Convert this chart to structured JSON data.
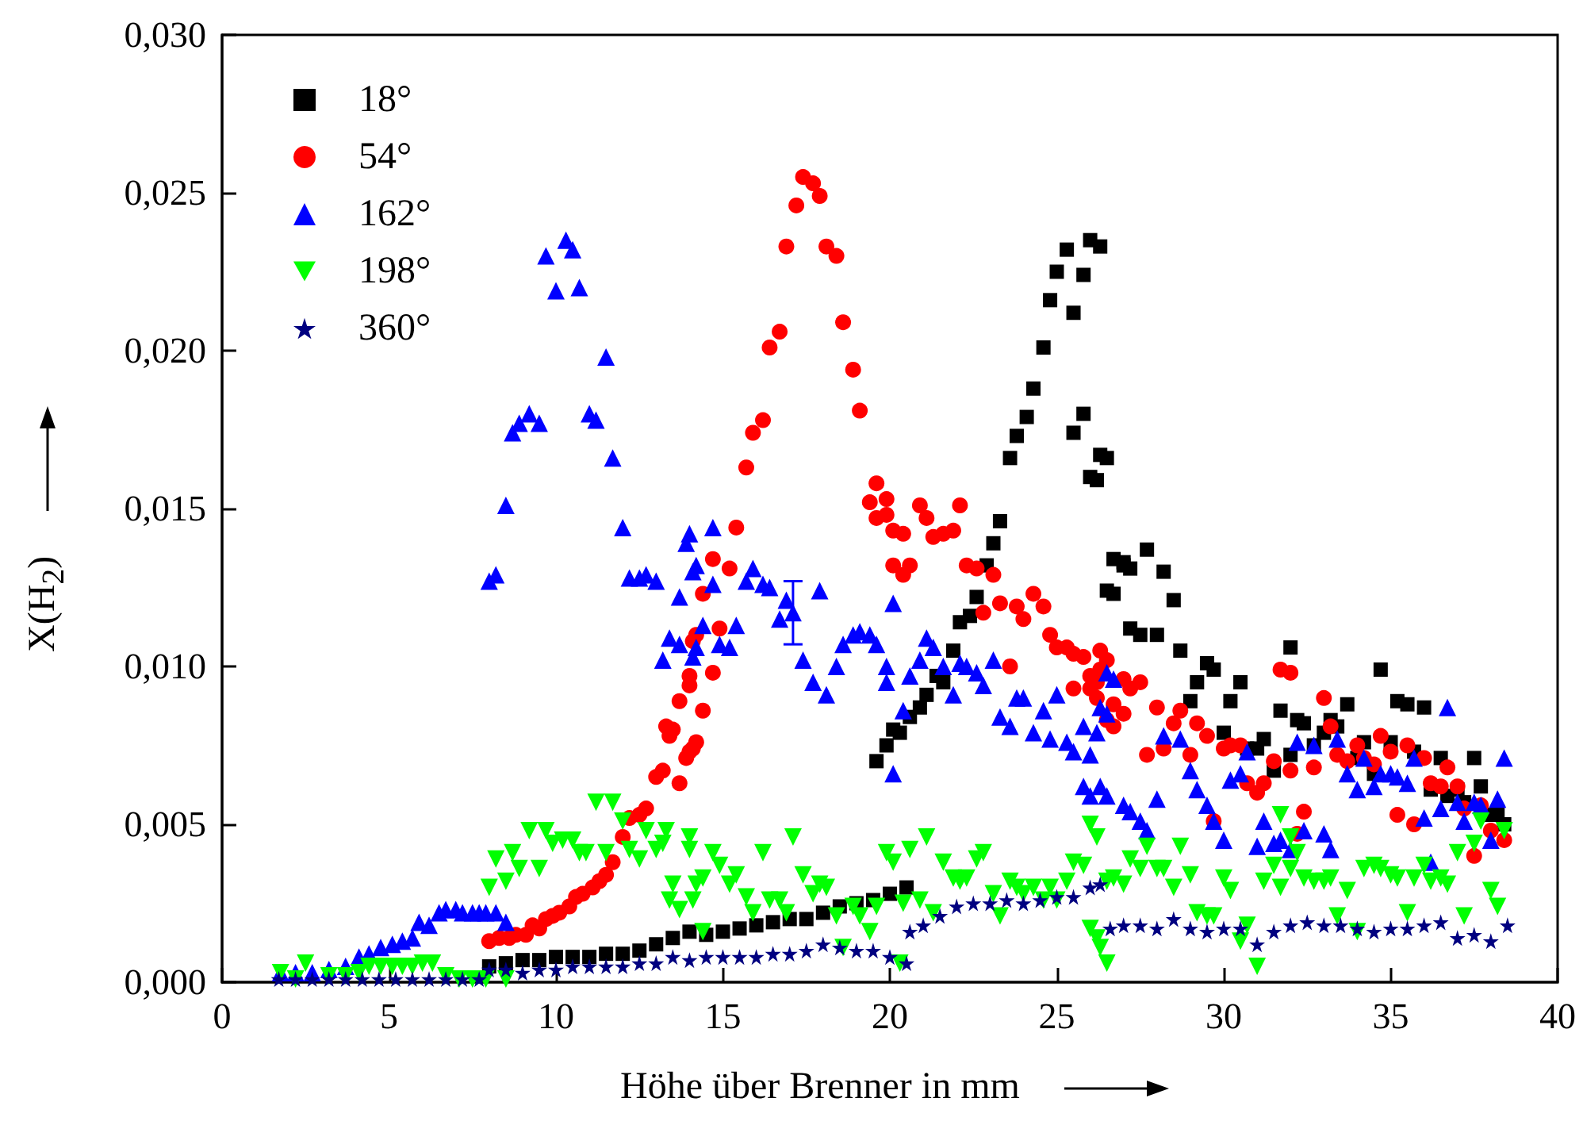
{
  "chart_data": {
    "type": "scatter",
    "xlabel": "Höhe über Brenner in mm",
    "ylabel": "X(H$_{2}$)",
    "xlim": [
      0,
      40
    ],
    "xticks": [
      0,
      5,
      10,
      15,
      20,
      25,
      30,
      35,
      40
    ],
    "ylim": [
      0,
      0.03
    ],
    "yticks": [
      {
        "value": 0,
        "label": "0,000"
      },
      {
        "value": 0.005,
        "label": "0,005"
      },
      {
        "value": 0.01,
        "label": "0,010"
      },
      {
        "value": 0.015,
        "label": "0,015"
      },
      {
        "value": 0.02,
        "label": "0,020"
      },
      {
        "value": 0.025,
        "label": "0,025"
      },
      {
        "value": 0.03,
        "label": "0,030"
      }
    ],
    "legend": "top left",
    "series": [
      {
        "name": "18°",
        "color": "#000000",
        "marker": "square",
        "x": [
          8,
          8.5,
          9,
          9.5,
          10,
          10.5,
          11,
          11.5,
          12,
          12.5,
          13,
          13.5,
          14,
          14.5,
          15,
          15.5,
          16,
          16.5,
          17,
          17.5,
          18,
          18.5,
          19,
          19.5,
          20,
          20.5,
          19.6,
          19.9,
          20.1,
          20.3,
          20.6,
          20.9,
          21.1,
          21.4,
          21.6,
          21.9,
          22.1,
          22.4,
          22.6,
          22.9,
          23.1,
          23.3,
          23.6,
          23.8,
          24.1,
          24.3,
          24.6,
          24.8,
          25.0,
          25.3,
          25.5,
          25.8,
          25.8,
          25.5,
          26.0,
          26.3,
          26.3,
          26.0,
          26.5,
          26.7,
          27.0,
          27.2,
          26.2,
          26.5,
          26.7,
          27.0,
          27.2,
          27.5,
          27.7,
          28.0,
          28.2,
          28.5,
          28.7,
          29.0,
          29.2,
          29.5,
          29.7,
          30.0,
          30.2,
          30.5,
          30.7,
          31.0,
          31.2,
          31.5,
          31.7,
          32.0,
          32.0,
          32.2,
          32.4,
          32.7,
          33.0,
          33.2,
          33.4,
          33.7,
          34.0,
          34.2,
          34.5,
          34.7,
          35.0,
          35.2,
          35.5,
          35.7,
          36.0,
          36.2,
          36.5,
          36.7,
          37.0,
          37.2,
          37.5,
          37.7,
          38.0,
          38.2,
          38.4
        ],
        "values": [
          0.0005,
          0.0006,
          0.0007,
          0.0007,
          0.0008,
          0.0008,
          0.0008,
          0.0009,
          0.0009,
          0.001,
          0.0012,
          0.0014,
          0.0016,
          0.0015,
          0.0016,
          0.0017,
          0.0018,
          0.0019,
          0.002,
          0.002,
          0.0022,
          0.0024,
          0.0025,
          0.0026,
          0.0028,
          0.003,
          0.007,
          0.0075,
          0.008,
          0.0079,
          0.0084,
          0.0087,
          0.0091,
          0.0097,
          0.0095,
          0.0105,
          0.0114,
          0.0116,
          0.0122,
          0.0132,
          0.0139,
          0.0146,
          0.0166,
          0.0173,
          0.0179,
          0.0188,
          0.0201,
          0.0216,
          0.0225,
          0.0232,
          0.0212,
          0.0224,
          0.018,
          0.0174,
          0.0235,
          0.0233,
          0.0167,
          0.016,
          0.0124,
          0.0134,
          0.0133,
          0.0112,
          0.0159,
          0.0166,
          0.0123,
          0.0132,
          0.0131,
          0.011,
          0.0137,
          0.011,
          0.013,
          0.0121,
          0.0105,
          0.0089,
          0.0095,
          0.0101,
          0.0099,
          0.0079,
          0.0089,
          0.0095,
          0.0074,
          0.0074,
          0.0077,
          0.0067,
          0.0086,
          0.0106,
          0.0072,
          0.0083,
          0.0082,
          0.0075,
          0.0079,
          0.0083,
          0.0081,
          0.0088,
          0.0071,
          0.0076,
          0.0066,
          0.0099,
          0.0076,
          0.0089,
          0.0088,
          0.0073,
          0.0087,
          0.0061,
          0.0071,
          0.0059,
          0.0061,
          0.0057,
          0.0071,
          0.0062,
          0.0053,
          0.0054,
          0.005
        ]
      },
      {
        "name": "54°",
        "color": "#ff0000",
        "marker": "circle",
        "x": [
          8.0,
          8.3,
          8.6,
          8.8,
          9.1,
          9.3,
          9.5,
          9.7,
          9.9,
          10.1,
          10.4,
          10.6,
          10.8,
          11.1,
          11.3,
          11.5,
          11.7,
          12.0,
          12.2,
          12.5,
          12.7,
          13.0,
          13.2,
          13.4,
          13.7,
          13.9,
          14.1,
          13.7,
          14.0,
          14.1,
          13.3,
          13.5,
          14.0,
          14.2,
          14.0,
          14.2,
          14.4,
          14.4,
          14.7,
          14.9,
          14.7,
          15.2,
          15.4,
          15.7,
          15.9,
          16.2,
          16.4,
          16.7,
          16.9,
          17.2,
          17.4,
          17.7,
          17.9,
          18.1,
          18.4,
          18.6,
          18.9,
          19.1,
          19.4,
          19.6,
          19.6,
          19.9,
          19.9,
          20.1,
          20.4,
          20.1,
          20.4,
          20.6,
          20.9,
          21.1,
          21.3,
          21.6,
          21.9,
          22.1,
          22.3,
          22.6,
          22.8,
          23.1,
          23.3,
          23.6,
          23.8,
          24.0,
          24.3,
          24.6,
          24.8,
          25.0,
          25.3,
          25.5,
          25.8,
          25.5,
          26.0,
          26.0,
          26.3,
          26.3,
          26.5,
          26.7,
          27.0,
          26.5,
          26.2,
          26.2,
          26.7,
          27.0,
          27.2,
          27.5,
          27.7,
          28.0,
          28.2,
          28.5,
          28.7,
          29.0,
          29.2,
          29.5,
          29.7,
          30.0,
          30.2,
          30.5,
          30.7,
          31.0,
          31.2,
          31.5,
          31.7,
          32.0,
          32.0,
          32.2,
          32.4,
          32.7,
          33.0,
          33.2,
          33.4,
          33.7,
          34.0,
          34.2,
          34.5,
          34.7,
          35.0,
          35.2,
          35.5,
          35.7,
          36.0,
          36.2,
          36.5,
          36.7,
          37.0,
          37.2,
          37.5,
          37.7,
          38.0,
          38.4
        ],
        "values": [
          0.0013,
          0.0014,
          0.0014,
          0.0015,
          0.0015,
          0.0018,
          0.0017,
          0.002,
          0.0021,
          0.0022,
          0.0024,
          0.0027,
          0.0028,
          0.003,
          0.0032,
          0.0034,
          0.0038,
          0.0046,
          0.0052,
          0.0053,
          0.0055,
          0.0065,
          0.0067,
          0.0078,
          0.0063,
          0.0071,
          0.0074,
          0.0089,
          0.0094,
          0.0108,
          0.0081,
          0.008,
          0.0073,
          0.0076,
          0.0097,
          0.011,
          0.0086,
          0.0123,
          0.0098,
          0.0112,
          0.0134,
          0.0131,
          0.0144,
          0.0163,
          0.0174,
          0.0178,
          0.0201,
          0.0206,
          0.0233,
          0.0246,
          0.0255,
          0.0253,
          0.0249,
          0.0233,
          0.023,
          0.0209,
          0.0194,
          0.0181,
          0.0152,
          0.0158,
          0.0147,
          0.0153,
          0.0148,
          0.0143,
          0.0142,
          0.0132,
          0.0129,
          0.0132,
          0.0151,
          0.0147,
          0.0141,
          0.0142,
          0.0143,
          0.0151,
          0.0132,
          0.0131,
          0.0117,
          0.0129,
          0.012,
          0.01,
          0.0119,
          0.0115,
          0.0123,
          0.0119,
          0.011,
          0.0106,
          0.0106,
          0.0104,
          0.0103,
          0.0093,
          0.0093,
          0.0097,
          0.0105,
          0.0099,
          0.0083,
          0.0088,
          0.0096,
          0.0102,
          0.0095,
          0.009,
          0.0081,
          0.0085,
          0.0093,
          0.0095,
          0.0072,
          0.0087,
          0.0074,
          0.0082,
          0.0086,
          0.0072,
          0.0082,
          0.0078,
          0.0051,
          0.0074,
          0.0075,
          0.0075,
          0.0063,
          0.006,
          0.0063,
          0.007,
          0.0099,
          0.0098,
          0.0067,
          0.0047,
          0.0054,
          0.0068,
          0.009,
          0.0081,
          0.0072,
          0.007,
          0.0075,
          0.0071,
          0.0069,
          0.0078,
          0.0073,
          0.0053,
          0.0075,
          0.005,
          0.0071,
          0.0063,
          0.0062,
          0.0068,
          0.0062,
          0.0055,
          0.004,
          0.0056,
          0.0048,
          0.0045
        ]
      },
      {
        "name": "162°",
        "color": "#0000ff",
        "marker": "triangle",
        "x": [
          1.75,
          2.2,
          2.7,
          3.2,
          3.7,
          4.1,
          4.4,
          4.75,
          5.1,
          5.4,
          5.7,
          5.9,
          6.2,
          6.5,
          6.7,
          7.0,
          7.2,
          7.5,
          7.7,
          7.9,
          8.2,
          8.5,
          8.0,
          8.2,
          8.5,
          8.7,
          8.9,
          9.2,
          9.5,
          9.7,
          10.0,
          10.3,
          10.5,
          10.7,
          11.0,
          11.2,
          11.5,
          11.7,
          12.0,
          12.2,
          12.5,
          12.7,
          13.0,
          13.2,
          13.4,
          13.7,
          13.7,
          13.9,
          14.1,
          14.1,
          14.0,
          14.2,
          14.2,
          14.4,
          14.7,
          14.7,
          14.9,
          15.2,
          15.4,
          15.7,
          15.9,
          16.2,
          16.4,
          16.7,
          16.9,
          17.4,
          17.7,
          17.9,
          18.1,
          18.4,
          18.6,
          18.9,
          19.1,
          19.4,
          19.6,
          19.9,
          19.9,
          20.1,
          20.1,
          20.4,
          20.6,
          20.9,
          21.1,
          21.3,
          21.6,
          21.9,
          22.1,
          22.3,
          22.6,
          22.8,
          23.1,
          23.3,
          23.6,
          23.8,
          24.0,
          24.3,
          24.6,
          24.8,
          25.0,
          25.3,
          25.5,
          25.8,
          25.8,
          26.0,
          26.3,
          26.3,
          26.5,
          27.0,
          27.2,
          26.7,
          26.5,
          26.2,
          26.0,
          26.5,
          27.5,
          27.7,
          28.0,
          28.2,
          28.7,
          29.0,
          29.2,
          29.5,
          29.7,
          30.0,
          30.2,
          30.5,
          30.7,
          31.0,
          31.2,
          31.5,
          31.7,
          32.0,
          32.2,
          32.4,
          32.7,
          33.0,
          33.2,
          33.4,
          33.7,
          34.0,
          34.2,
          34.5,
          34.7,
          35.0,
          35.2,
          35.5,
          35.7,
          36.0,
          36.2,
          36.5,
          36.7,
          37.0,
          37.2,
          37.5,
          37.7,
          38.0,
          38.2,
          38.4
        ],
        "values": [
          0.0003,
          0.0003,
          0.0003,
          0.0004,
          0.0005,
          0.0008,
          0.0009,
          0.0011,
          0.0012,
          0.0013,
          0.0014,
          0.0019,
          0.0018,
          0.0022,
          0.0023,
          0.0023,
          0.0022,
          0.0022,
          0.0022,
          0.0022,
          0.0022,
          0.0019,
          0.0127,
          0.0129,
          0.0151,
          0.0174,
          0.0177,
          0.018,
          0.0177,
          0.023,
          0.0219,
          0.0235,
          0.0232,
          0.022,
          0.018,
          0.0178,
          0.0198,
          0.0166,
          0.0144,
          0.0128,
          0.0128,
          0.0129,
          0.0127,
          0.0102,
          0.0109,
          0.0107,
          0.0122,
          0.0139,
          0.013,
          0.0103,
          0.0142,
          0.0132,
          0.0106,
          0.0113,
          0.0144,
          0.0126,
          0.0107,
          0.0106,
          0.0113,
          0.0127,
          0.0131,
          0.0126,
          0.0125,
          0.0115,
          0.0121,
          0.0102,
          0.0095,
          0.0124,
          0.0091,
          0.01,
          0.0107,
          0.011,
          0.0111,
          0.011,
          0.0107,
          0.01,
          0.0095,
          0.012,
          0.0066,
          0.0086,
          0.0097,
          0.0102,
          0.0109,
          0.0106,
          0.01,
          0.0091,
          0.0101,
          0.01,
          0.0098,
          0.0094,
          0.0102,
          0.0084,
          0.0081,
          0.009,
          0.009,
          0.0079,
          0.0086,
          0.0077,
          0.0091,
          0.0076,
          0.0073,
          0.0062,
          0.0081,
          0.0072,
          0.0062,
          0.0087,
          0.0098,
          0.0056,
          0.0054,
          0.0096,
          0.0085,
          0.0079,
          0.0059,
          0.0059,
          0.0051,
          0.0048,
          0.0058,
          0.0078,
          0.0077,
          0.0067,
          0.0061,
          0.0056,
          0.0051,
          0.0045,
          0.0064,
          0.0066,
          0.0073,
          0.0043,
          0.0051,
          0.0044,
          0.0045,
          0.0042,
          0.0076,
          0.0048,
          0.0075,
          0.0047,
          0.0042,
          0.0077,
          0.0066,
          0.0061,
          0.0071,
          0.0062,
          0.0066,
          0.0066,
          0.0065,
          0.0063,
          0.0071,
          0.0052,
          0.0038,
          0.0055,
          0.0087,
          0.0057,
          0.0051,
          0.0057,
          0.0056,
          0.0045,
          0.0058,
          0.0071
        ]
      },
      {
        "color": "#0000ff",
        "marker": "triangle",
        "x": [
          17.1
        ],
        "values": [
          0.0117
        ],
        "errors": [
          [
            0.0107,
            0.0127
          ]
        ]
      },
      {
        "name": "198°",
        "color": "#00ff00",
        "marker": "triangle-down",
        "x": [
          1.75,
          2.2,
          2.5,
          3.2,
          3.7,
          4.1,
          4.4,
          4.75,
          5.1,
          5.4,
          5.7,
          6.0,
          6.3,
          6.7,
          7.1,
          7.5,
          7.9,
          8.5,
          8.0,
          8.2,
          8.5,
          8.7,
          8.9,
          9.2,
          9.5,
          9.7,
          9.9,
          10.2,
          10.5,
          10.7,
          10.9,
          11.2,
          11.5,
          11.7,
          12.0,
          12.2,
          12.5,
          12.7,
          13.0,
          13.2,
          13.4,
          13.7,
          14.0,
          14.1,
          13.3,
          13.5,
          14.0,
          14.2,
          14.4,
          14.4,
          14.7,
          14.9,
          15.2,
          15.4,
          15.7,
          15.9,
          16.2,
          16.4,
          16.7,
          16.9,
          17.1,
          17.4,
          17.7,
          17.9,
          18.1,
          18.4,
          18.6,
          18.9,
          19.1,
          19.4,
          19.6,
          19.9,
          20.1,
          20.3,
          20.4,
          20.6,
          20.9,
          21.1,
          21.3,
          21.6,
          21.9,
          22.1,
          22.3,
          22.6,
          22.8,
          23.1,
          23.3,
          23.6,
          23.8,
          24.0,
          24.3,
          24.6,
          24.8,
          25.0,
          25.3,
          25.5,
          25.8,
          26.0,
          26.0,
          26.3,
          26.5,
          26.7,
          27.2,
          26.2,
          26.2,
          26.5,
          27.0,
          27.5,
          27.7,
          28.0,
          28.2,
          28.5,
          28.7,
          29.0,
          29.2,
          29.5,
          29.7,
          30.0,
          30.2,
          30.5,
          30.7,
          31.0,
          31.2,
          31.5,
          31.7,
          31.7,
          32.0,
          32.0,
          32.2,
          32.4,
          32.7,
          33.0,
          33.2,
          33.4,
          33.7,
          34.0,
          34.2,
          34.5,
          34.7,
          35.0,
          35.2,
          35.5,
          35.7,
          36.0,
          36.2,
          36.5,
          36.7,
          37.0,
          37.2,
          37.5,
          37.7,
          38.0,
          38.2,
          38.4
        ],
        "values": [
          0.0003,
          0.0001,
          0.0006,
          0.0002,
          0.0002,
          0.0003,
          0.0005,
          0.0005,
          0.0005,
          0.0005,
          0.0005,
          0.0006,
          0.0006,
          0.0002,
          0.0001,
          0.0001,
          0.0001,
          0.0001,
          0.003,
          0.0039,
          0.0032,
          0.0041,
          0.0036,
          0.0048,
          0.0036,
          0.0048,
          0.0044,
          0.0045,
          0.0045,
          0.0041,
          0.0041,
          0.0057,
          0.0041,
          0.0057,
          0.0051,
          0.0042,
          0.0039,
          0.0048,
          0.0042,
          0.0044,
          0.0026,
          0.0023,
          0.0042,
          0.0026,
          0.0048,
          0.0031,
          0.0046,
          0.0031,
          0.0033,
          0.0016,
          0.0041,
          0.0037,
          0.0031,
          0.0034,
          0.0027,
          0.0022,
          0.0041,
          0.0026,
          0.0026,
          0.0022,
          0.0046,
          0.0034,
          0.0028,
          0.0031,
          0.003,
          0.0021,
          0.0011,
          0.0024,
          0.0021,
          0.0016,
          0.0024,
          0.0041,
          0.0038,
          0.0006,
          0.0025,
          0.0042,
          0.0026,
          0.0046,
          0.0022,
          0.0038,
          0.0033,
          0.0032,
          0.0033,
          0.0039,
          0.0041,
          0.0028,
          0.0021,
          0.0032,
          0.003,
          0.0028,
          0.003,
          0.0026,
          0.003,
          0.0026,
          0.0032,
          0.0038,
          0.0037,
          0.005,
          0.0017,
          0.0011,
          0.0032,
          0.0033,
          0.0039,
          0.0046,
          0.0014,
          0.0006,
          0.0031,
          0.0036,
          0.0043,
          0.0036,
          0.0036,
          0.003,
          0.0043,
          0.0034,
          0.0022,
          0.0021,
          0.0021,
          0.0033,
          0.0029,
          0.0013,
          0.0018,
          0.0005,
          0.0032,
          0.0037,
          0.0053,
          0.003,
          0.0036,
          0.0046,
          0.0041,
          0.0033,
          0.0032,
          0.0032,
          0.0033,
          0.0021,
          0.0029,
          0.0016,
          0.0036,
          0.0037,
          0.0036,
          0.0034,
          0.0033,
          0.0022,
          0.0033,
          0.0037,
          0.0032,
          0.0033,
          0.0031,
          0.0041,
          0.0021,
          0.0044,
          0.0051,
          0.0029,
          0.0024,
          0.0048
        ]
      },
      {
        "name": "360°",
        "color": "#000080",
        "marker": "star",
        "x": [
          1.7,
          2.2,
          2.7,
          3.2,
          3.7,
          4.2,
          4.7,
          5.2,
          5.7,
          6.2,
          6.7,
          7.2,
          7.7,
          8,
          8.5,
          9,
          9.5,
          10,
          10.5,
          11,
          11.5,
          12,
          12.5,
          13,
          13.5,
          14,
          14.5,
          15,
          15.5,
          16,
          16.5,
          17,
          17.5,
          18,
          18.5,
          19,
          19.5,
          20,
          20.5,
          20.6,
          21,
          21.5,
          22,
          22.5,
          23,
          23.5,
          24,
          24.5,
          25,
          25.5,
          26,
          26.3,
          26.6,
          27,
          27.5,
          28,
          28.5,
          29,
          29.5,
          30,
          30.5,
          31,
          31.5,
          32,
          32.5,
          33,
          33.5,
          34,
          34.5,
          35,
          35.5,
          36,
          36.5,
          37,
          37.5,
          38,
          38.5
        ],
        "values": [
          0.0001,
          0.0001,
          0.0001,
          0.0001,
          0.0001,
          0.0001,
          0.0001,
          0.0001,
          0.0001,
          0.0001,
          0.0001,
          0.0001,
          0.0001,
          0.0004,
          0.0004,
          0.0003,
          0.0004,
          0.0004,
          0.0005,
          0.0005,
          0.0005,
          0.0005,
          0.0006,
          0.0006,
          0.0008,
          0.0007,
          0.0008,
          0.0008,
          0.0008,
          0.0008,
          0.0009,
          0.0009,
          0.001,
          0.0012,
          0.0011,
          0.001,
          0.001,
          0.0008,
          0.0006,
          0.0016,
          0.0018,
          0.0021,
          0.0024,
          0.0025,
          0.0025,
          0.0026,
          0.0025,
          0.0026,
          0.0027,
          0.0027,
          0.003,
          0.0031,
          0.0017,
          0.0018,
          0.0018,
          0.0017,
          0.002,
          0.0017,
          0.0016,
          0.0017,
          0.0017,
          0.0012,
          0.0016,
          0.0018,
          0.0019,
          0.0018,
          0.0018,
          0.0017,
          0.0016,
          0.0017,
          0.0017,
          0.0018,
          0.0019,
          0.0014,
          0.0015,
          0.0013,
          0.0018
        ]
      }
    ]
  }
}
